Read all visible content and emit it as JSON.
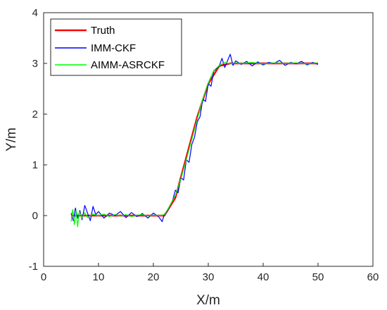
{
  "chart_data": {
    "type": "line",
    "title": "",
    "xlabel": "X/m",
    "ylabel": "Y/m",
    "xlim": [
      0,
      60
    ],
    "ylim": [
      -1,
      4
    ],
    "xticks": [
      0,
      10,
      20,
      30,
      40,
      50,
      60
    ],
    "yticks": [
      -1,
      0,
      1,
      2,
      3,
      4
    ],
    "xtick_labels": [
      "0",
      "10",
      "20",
      "30",
      "40",
      "50",
      "60"
    ],
    "ytick_labels": [
      "-1",
      "0",
      "1",
      "2",
      "3",
      "4"
    ],
    "grid": false,
    "legend_position": "top-left",
    "series": [
      {
        "name": "Truth",
        "color": "#ff0000",
        "x": [
          5,
          22,
          24,
          26,
          28,
          30,
          32,
          34,
          50
        ],
        "y": [
          0,
          0,
          0.35,
          1.15,
          1.95,
          2.6,
          2.95,
          3.0,
          3.0
        ]
      },
      {
        "name": "IMM-CKF",
        "color": "#0000ff",
        "x": [
          5,
          5.4,
          5.8,
          6.2,
          6.6,
          7,
          7.5,
          8,
          8.5,
          9,
          9.5,
          10,
          11,
          12,
          13,
          14,
          15,
          16,
          17,
          18,
          19,
          20,
          21,
          21.6,
          22,
          22.5,
          23,
          23.5,
          24,
          24.5,
          25,
          25.5,
          26,
          26.5,
          27,
          27.5,
          28,
          28.5,
          29,
          29.5,
          30,
          30.5,
          31,
          31.5,
          32,
          32.5,
          33,
          33.5,
          34,
          34.5,
          35,
          36,
          37,
          38,
          39,
          40,
          41,
          42,
          43,
          44,
          45,
          46,
          47,
          48,
          49,
          50
        ],
        "y": [
          0.05,
          -0.1,
          0.15,
          -0.05,
          0.1,
          -0.08,
          0.2,
          0.05,
          -0.1,
          0.18,
          0.02,
          0.08,
          -0.05,
          0.05,
          0.0,
          0.08,
          -0.04,
          0.06,
          -0.02,
          0.04,
          -0.05,
          0.05,
          -0.03,
          -0.12,
          0.03,
          0.08,
          0.2,
          0.3,
          0.5,
          0.45,
          0.75,
          0.7,
          1.1,
          1.05,
          1.4,
          1.55,
          1.85,
          1.95,
          2.3,
          2.25,
          2.6,
          2.55,
          2.85,
          2.9,
          2.95,
          3.1,
          2.92,
          3.05,
          3.18,
          2.96,
          3.05,
          2.98,
          3.04,
          2.95,
          3.03,
          2.97,
          3.02,
          3.0,
          3.06,
          2.96,
          3.02,
          2.99,
          3.04,
          2.97,
          3.02,
          2.98
        ]
      },
      {
        "name": "AIMM-ASRCKF",
        "color": "#00ff00",
        "x": [
          5,
          5.3,
          5.6,
          5.9,
          6.2,
          6.5,
          7,
          7.5,
          8,
          9,
          10,
          11,
          12,
          13,
          14,
          15,
          16,
          17,
          18,
          19,
          20,
          21,
          22,
          22.5,
          23,
          24,
          25,
          26,
          27,
          28,
          29,
          30,
          31,
          32,
          33,
          34,
          35,
          36,
          38,
          40,
          42,
          44,
          46,
          48,
          50
        ],
        "y": [
          -0.12,
          0.12,
          -0.18,
          0.1,
          -0.22,
          0.08,
          -0.05,
          0.06,
          -0.04,
          0.03,
          0.0,
          0.03,
          -0.02,
          0.02,
          -0.01,
          0.02,
          -0.02,
          0.01,
          0.02,
          -0.01,
          0.01,
          0.0,
          0.02,
          0.1,
          0.2,
          0.4,
          0.72,
          1.1,
          1.5,
          1.9,
          2.3,
          2.62,
          2.86,
          2.96,
          3.02,
          2.99,
          3.01,
          3.0,
          3.02,
          2.99,
          3.01,
          3.0,
          3.01,
          2.99,
          3.01
        ]
      }
    ]
  }
}
